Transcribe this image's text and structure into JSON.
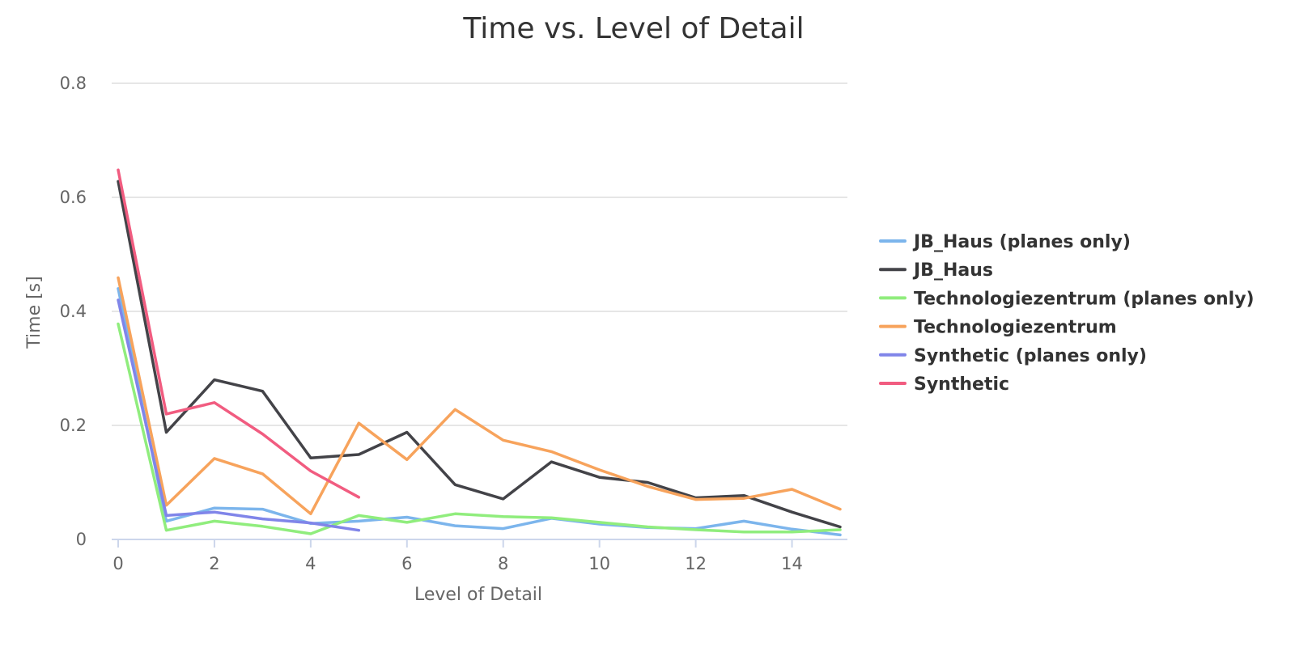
{
  "chart_data": {
    "type": "line",
    "title": "Time vs. Level of Detail",
    "xlabel": "Level of Detail",
    "ylabel": "Time [s]",
    "xlim": [
      0,
      15
    ],
    "ylim": [
      0,
      0.8
    ],
    "xticks": [
      0,
      2,
      4,
      6,
      8,
      10,
      12,
      14
    ],
    "yticks": [
      0,
      0.2,
      0.4,
      0.6,
      0.8
    ],
    "ytick_labels": [
      "0",
      "0.2",
      "0.4",
      "0.6",
      "0.8"
    ],
    "grid": true,
    "legend": "right",
    "series": [
      {
        "name": "JB_Haus (planes only)",
        "color": "#7cb5ec",
        "x": [
          0,
          1,
          2,
          3,
          4,
          5,
          6,
          7,
          8,
          9,
          10,
          11,
          12,
          13,
          14,
          15
        ],
        "y": [
          0.44,
          0.032,
          0.055,
          0.053,
          0.028,
          0.032,
          0.039,
          0.024,
          0.019,
          0.037,
          0.027,
          0.021,
          0.019,
          0.032,
          0.018,
          0.008
        ]
      },
      {
        "name": "JB_Haus",
        "color": "#434348",
        "x": [
          0,
          1,
          2,
          3,
          4,
          5,
          6,
          7,
          8,
          9,
          10,
          11,
          12,
          13,
          14,
          15
        ],
        "y": [
          0.628,
          0.188,
          0.28,
          0.26,
          0.143,
          0.149,
          0.188,
          0.096,
          0.071,
          0.136,
          0.109,
          0.1,
          0.073,
          0.077,
          0.048,
          0.022
        ]
      },
      {
        "name": "Technologiezentrum (planes only)",
        "color": "#90ed7d",
        "x": [
          0,
          1,
          2,
          3,
          4,
          5,
          6,
          7,
          8,
          9,
          10,
          11,
          12,
          13,
          14,
          15
        ],
        "y": [
          0.378,
          0.016,
          0.032,
          0.023,
          0.01,
          0.042,
          0.03,
          0.045,
          0.04,
          0.038,
          0.03,
          0.022,
          0.017,
          0.013,
          0.013,
          0.017
        ]
      },
      {
        "name": "Technologiezentrum",
        "color": "#f7a35c",
        "x": [
          0,
          1,
          2,
          3,
          4,
          5,
          6,
          7,
          8,
          9,
          10,
          11,
          12,
          13,
          14,
          15
        ],
        "y": [
          0.459,
          0.06,
          0.142,
          0.115,
          0.045,
          0.204,
          0.14,
          0.228,
          0.174,
          0.154,
          0.122,
          0.093,
          0.07,
          0.072,
          0.088,
          0.053
        ]
      },
      {
        "name": "Synthetic (planes only)",
        "color": "#8085e9",
        "x": [
          0,
          1,
          2,
          3,
          4,
          5
        ],
        "y": [
          0.42,
          0.042,
          0.048,
          0.036,
          0.029,
          0.016
        ]
      },
      {
        "name": "Synthetic",
        "color": "#f15c80",
        "x": [
          0,
          1,
          2,
          3,
          4,
          5
        ],
        "y": [
          0.648,
          0.22,
          0.24,
          0.185,
          0.12,
          0.074
        ]
      }
    ]
  }
}
